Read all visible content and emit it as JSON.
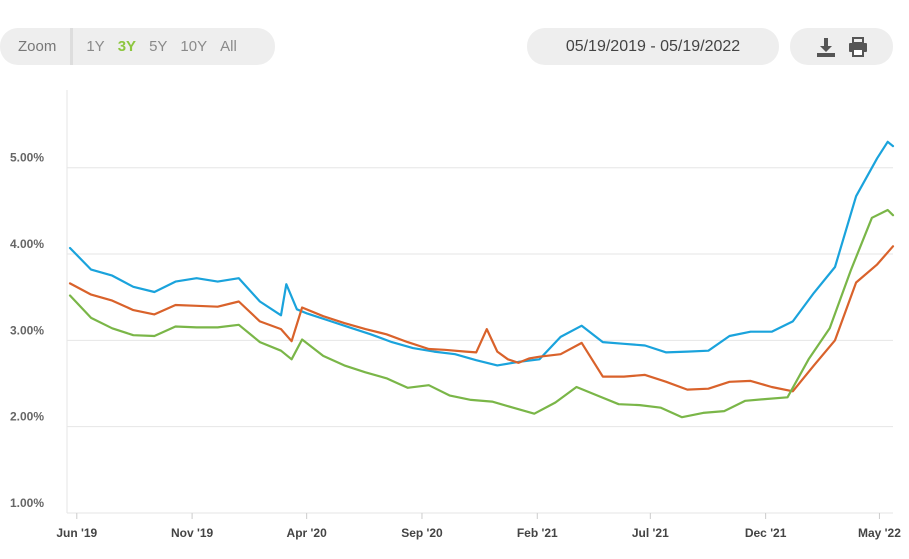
{
  "toolbar": {
    "zoom_label": "Zoom",
    "zoom_options": [
      "1Y",
      "3Y",
      "5Y",
      "10Y",
      "All"
    ],
    "active_zoom": "3Y",
    "date_range": "05/19/2019 - 05/19/2022",
    "download_icon": "download-icon",
    "print_icon": "print-icon"
  },
  "chart_data": {
    "type": "line",
    "title": "",
    "xlabel": "",
    "ylabel": "",
    "ylim": [
      1.0,
      5.9
    ],
    "y_ticks": [
      1.0,
      2.0,
      3.0,
      4.0,
      5.0
    ],
    "y_tick_labels": [
      "1.00%",
      "2.00%",
      "3.00%",
      "4.00%",
      "5.00%"
    ],
    "x_range": [
      "2019-05-19",
      "2022-05-19"
    ],
    "x_ticks": [
      "2019-06-01",
      "2019-11-01",
      "2020-04-01",
      "2020-09-01",
      "2021-02-01",
      "2021-07-01",
      "2021-12-01",
      "2022-05-01"
    ],
    "x_tick_labels": [
      "Jun '19",
      "Nov '19",
      "Apr '20",
      "Sep '20",
      "Feb '21",
      "Jul '21",
      "Dec '21",
      "May '22"
    ],
    "grid": true,
    "series": [
      {
        "color": "#1aa3dc",
        "x": [
          "2019-05-23",
          "2019-06-20",
          "2019-07-18",
          "2019-08-15",
          "2019-09-12",
          "2019-10-10",
          "2019-11-07",
          "2019-12-05",
          "2020-01-02",
          "2020-01-30",
          "2020-02-27",
          "2020-03-05",
          "2020-03-19",
          "2020-04-02",
          "2020-04-30",
          "2020-05-28",
          "2020-06-25",
          "2020-07-23",
          "2020-08-20",
          "2020-09-17",
          "2020-10-15",
          "2020-11-12",
          "2020-12-10",
          "2021-01-07",
          "2021-02-04",
          "2021-03-04",
          "2021-04-01",
          "2021-04-29",
          "2021-05-27",
          "2021-06-24",
          "2021-07-22",
          "2021-08-19",
          "2021-09-16",
          "2021-10-14",
          "2021-11-11",
          "2021-12-09",
          "2022-01-06",
          "2022-02-03",
          "2022-03-03",
          "2022-03-31",
          "2022-04-28",
          "2022-05-12",
          "2022-05-19"
        ],
        "y": [
          4.07,
          3.82,
          3.75,
          3.62,
          3.56,
          3.68,
          3.72,
          3.68,
          3.72,
          3.45,
          3.29,
          3.65,
          3.36,
          3.31,
          3.23,
          3.15,
          3.07,
          2.98,
          2.91,
          2.87,
          2.84,
          2.77,
          2.71,
          2.75,
          2.78,
          3.04,
          3.17,
          2.98,
          2.96,
          2.94,
          2.86,
          2.87,
          2.88,
          3.05,
          3.1,
          3.1,
          3.22,
          3.55,
          3.85,
          4.67,
          5.11,
          5.3,
          5.25
        ]
      },
      {
        "color": "#d9622b",
        "x": [
          "2019-05-23",
          "2019-06-20",
          "2019-07-18",
          "2019-08-15",
          "2019-09-12",
          "2019-10-10",
          "2019-11-07",
          "2019-12-05",
          "2020-01-02",
          "2020-01-30",
          "2020-02-27",
          "2020-03-12",
          "2020-03-26",
          "2020-04-23",
          "2020-05-21",
          "2020-06-18",
          "2020-07-16",
          "2020-08-13",
          "2020-09-10",
          "2020-10-01",
          "2020-10-29",
          "2020-11-12",
          "2020-11-26",
          "2020-12-10",
          "2020-12-24",
          "2021-01-07",
          "2021-01-21",
          "2021-02-04",
          "2021-03-04",
          "2021-04-01",
          "2021-04-29",
          "2021-05-27",
          "2021-06-24",
          "2021-07-22",
          "2021-08-19",
          "2021-09-16",
          "2021-10-14",
          "2021-11-11",
          "2021-12-09",
          "2022-01-06",
          "2022-02-03",
          "2022-03-03",
          "2022-03-31",
          "2022-04-28",
          "2022-05-19"
        ],
        "y": [
          3.66,
          3.53,
          3.46,
          3.35,
          3.3,
          3.41,
          3.4,
          3.39,
          3.45,
          3.22,
          3.13,
          2.99,
          3.38,
          3.28,
          3.2,
          3.13,
          3.07,
          2.98,
          2.9,
          2.89,
          2.87,
          2.86,
          3.13,
          2.87,
          2.78,
          2.74,
          2.79,
          2.81,
          2.84,
          2.97,
          2.58,
          2.58,
          2.6,
          2.52,
          2.43,
          2.44,
          2.52,
          2.53,
          2.46,
          2.41,
          2.71,
          3.0,
          3.67,
          3.88,
          4.09
        ]
      },
      {
        "color": "#7ab648",
        "x": [
          "2019-05-23",
          "2019-06-20",
          "2019-07-18",
          "2019-08-15",
          "2019-09-12",
          "2019-10-10",
          "2019-11-07",
          "2019-12-05",
          "2020-01-02",
          "2020-01-30",
          "2020-02-27",
          "2020-03-12",
          "2020-03-26",
          "2020-04-23",
          "2020-05-21",
          "2020-06-18",
          "2020-07-16",
          "2020-08-13",
          "2020-09-10",
          "2020-10-08",
          "2020-11-05",
          "2020-12-03",
          "2020-12-31",
          "2021-01-28",
          "2021-02-25",
          "2021-03-25",
          "2021-04-22",
          "2021-05-20",
          "2021-06-17",
          "2021-07-15",
          "2021-08-12",
          "2021-09-09",
          "2021-10-07",
          "2021-11-04",
          "2021-12-02",
          "2021-12-30",
          "2022-01-27",
          "2022-02-24",
          "2022-03-24",
          "2022-04-21",
          "2022-05-12",
          "2022-05-19"
        ],
        "y": [
          3.52,
          3.26,
          3.14,
          3.06,
          3.05,
          3.16,
          3.15,
          3.15,
          3.18,
          2.98,
          2.88,
          2.78,
          3.01,
          2.82,
          2.71,
          2.63,
          2.56,
          2.45,
          2.48,
          2.36,
          2.31,
          2.29,
          2.22,
          2.15,
          2.28,
          2.46,
          2.36,
          2.26,
          2.25,
          2.22,
          2.11,
          2.16,
          2.18,
          2.3,
          2.32,
          2.34,
          2.78,
          3.14,
          3.81,
          4.42,
          4.51,
          4.45
        ]
      }
    ]
  }
}
